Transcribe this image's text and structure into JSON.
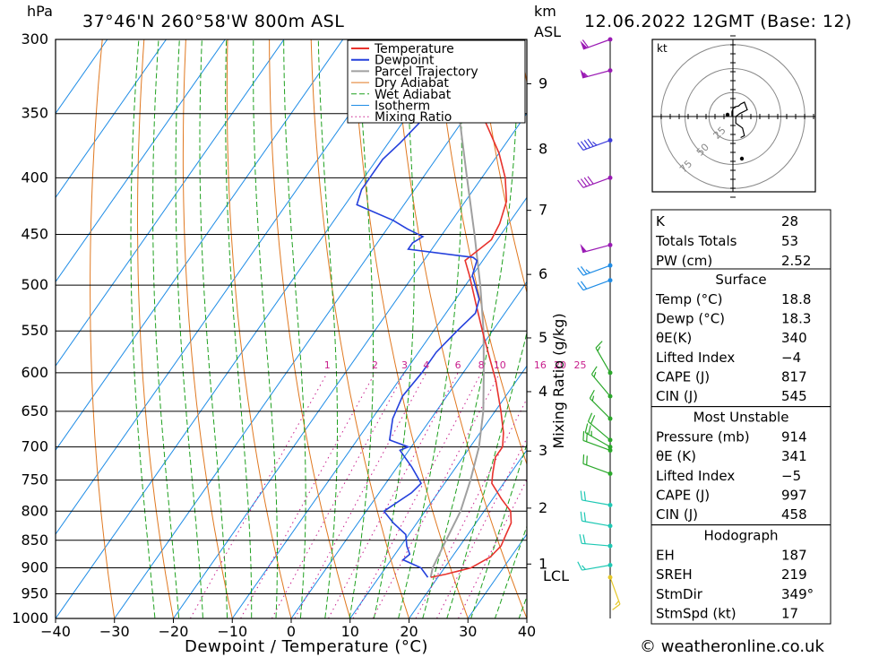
{
  "header": {
    "location": "37°46'N  260°58'W  800m  ASL",
    "datetime": "12.06.2022  12GMT  (Base: 12)",
    "hpa_label": "hPa",
    "km_label": "km",
    "asl_label": "ASL",
    "lcl_label": "LCL",
    "credit": "© weatheronline.co.uk",
    "kt_label": "kt"
  },
  "chart_data": {
    "type": "line",
    "title": "37°46'N  260°58'W  800m  ASL",
    "xlabel": "Dewpoint / Temperature (°C)",
    "ylabel": "hPa",
    "mixing_axis_label": "Mixing Ratio (g/kg)",
    "xlim": [
      -40,
      40
    ],
    "ylim": [
      1000,
      300
    ],
    "x_ticks": [
      "−40",
      "−30",
      "−20",
      "−10",
      "0",
      "10",
      "20",
      "30",
      "40"
    ],
    "pressure_levels": [
      300,
      350,
      400,
      450,
      500,
      550,
      600,
      650,
      700,
      750,
      800,
      850,
      900,
      950,
      1000
    ],
    "km_ticks": [
      {
        "label": "9",
        "p": 329
      },
      {
        "label": "8",
        "p": 377
      },
      {
        "label": "7",
        "p": 428
      },
      {
        "label": "6",
        "p": 489
      },
      {
        "label": "5",
        "p": 558
      },
      {
        "label": "4",
        "p": 624
      },
      {
        "label": "3",
        "p": 706
      },
      {
        "label": "2",
        "p": 795
      },
      {
        "label": "1",
        "p": 893
      }
    ],
    "mixing_ratio_labels": [
      "1",
      "2",
      "3",
      "4",
      "6",
      "8",
      "10",
      "16",
      "20",
      "25"
    ],
    "mixing_ratio_values": [
      1,
      2,
      3,
      4,
      6,
      8,
      10,
      16,
      20,
      25
    ],
    "legend": [
      "Temperature",
      "Dewpoint",
      "Parcel Trajectory",
      "Dry Adiabat",
      "Wet Adiabat",
      "Isotherm",
      "Mixing Ratio"
    ],
    "colors": {
      "temperature": "#e8322d",
      "dewpoint": "#2440dc",
      "parcel": "#a0a0a0",
      "dry_adiabat": "#e07820",
      "wet_adiabat": "#1ea01e",
      "isotherm": "#1e8ce6",
      "mixing_ratio": "#c81e8c"
    },
    "series": [
      {
        "name": "Temperature",
        "points": [
          [
            18.8,
            918
          ],
          [
            21,
            912
          ],
          [
            24.5,
            900
          ],
          [
            26.5,
            880
          ],
          [
            27,
            860
          ],
          [
            26.5,
            840
          ],
          [
            26,
            820
          ],
          [
            24.5,
            800
          ],
          [
            21.5,
            780
          ],
          [
            18,
            755
          ],
          [
            17,
            740
          ],
          [
            15.5,
            715
          ],
          [
            15.5,
            700
          ],
          [
            14,
            680
          ],
          [
            11,
            650
          ],
          [
            6.5,
            610
          ],
          [
            2.5,
            580
          ],
          [
            -1,
            555
          ],
          [
            -6,
            520
          ],
          [
            -10.5,
            490
          ],
          [
            -13,
            475
          ],
          [
            -12.5,
            470
          ],
          [
            -11,
            455
          ],
          [
            -11.5,
            440
          ],
          [
            -13,
            420
          ],
          [
            -16,
            400
          ],
          [
            -20,
            380
          ],
          [
            -25,
            360
          ],
          [
            -29,
            345
          ],
          [
            -33,
            330
          ],
          [
            -38,
            315
          ],
          [
            -41,
            300
          ]
        ]
      },
      {
        "name": "Dewpoint",
        "points": [
          [
            18.3,
            918
          ],
          [
            16,
            900
          ],
          [
            12,
            885
          ],
          [
            12.5,
            875
          ],
          [
            11,
            860
          ],
          [
            9.5,
            840
          ],
          [
            6,
            820
          ],
          [
            3,
            800
          ],
          [
            5.5,
            770
          ],
          [
            6,
            755
          ],
          [
            2.5,
            730
          ],
          [
            -1.5,
            705
          ],
          [
            -0.5,
            700
          ],
          [
            -4.5,
            690
          ],
          [
            -6.5,
            660
          ],
          [
            -7.5,
            630
          ],
          [
            -7,
            600
          ],
          [
            -7,
            575
          ],
          [
            -6,
            550
          ],
          [
            -5,
            530
          ],
          [
            -6,
            515
          ],
          [
            -10,
            490
          ],
          [
            -11,
            475
          ],
          [
            -12,
            472
          ],
          [
            -24,
            464
          ],
          [
            -24,
            458
          ],
          [
            -23,
            452
          ],
          [
            -26.5,
            445
          ],
          [
            -30,
            437
          ],
          [
            -38,
            423
          ],
          [
            -39,
            410
          ],
          [
            -39,
            395
          ],
          [
            -39,
            385
          ],
          [
            -38,
            372
          ],
          [
            -37,
            355
          ],
          [
            -39,
            350
          ],
          [
            -34,
            348
          ],
          [
            -36,
            340
          ],
          [
            -38,
            330
          ],
          [
            -44,
            318
          ],
          [
            -40,
            300
          ]
        ]
      },
      {
        "name": "Parcel Trajectory",
        "points": [
          [
            18.8,
            918
          ],
          [
            18,
            900
          ],
          [
            17,
            850
          ],
          [
            16,
            800
          ],
          [
            14,
            750
          ],
          [
            11.5,
            700
          ],
          [
            8,
            650
          ],
          [
            3.5,
            600
          ],
          [
            -1.5,
            550
          ],
          [
            -7.5,
            500
          ],
          [
            -14.5,
            450
          ],
          [
            -22.5,
            400
          ],
          [
            -31.5,
            350
          ],
          [
            -41,
            300
          ]
        ]
      }
    ]
  },
  "hodograph": {
    "rings": [
      "25",
      "50",
      "75"
    ],
    "points": [
      [
        0,
        0
      ],
      [
        -1,
        1
      ],
      [
        -1,
        5
      ],
      [
        0,
        8
      ],
      [
        2,
        10
      ],
      [
        6,
        11
      ],
      [
        8,
        13
      ],
      [
        12,
        15
      ],
      [
        15,
        7
      ],
      [
        7,
        3
      ],
      [
        3,
        0
      ],
      [
        3,
        -7
      ],
      [
        10,
        -12
      ],
      [
        12,
        -20
      ],
      [
        8,
        -22
      ]
    ]
  },
  "stats": {
    "k": {
      "label": "K",
      "value": "28"
    },
    "tt": {
      "label": "Totals Totals",
      "value": "53"
    },
    "pw": {
      "label": "PW (cm)",
      "value": "2.52"
    },
    "surface": {
      "title": "Surface",
      "rows": [
        {
          "label": "Temp (°C)",
          "value": "18.8"
        },
        {
          "label": "Dewp (°C)",
          "value": "18.3"
        },
        {
          "label": "θE(K)",
          "value": "340"
        },
        {
          "label": "Lifted Index",
          "value": "−4"
        },
        {
          "label": "CAPE (J)",
          "value": "817"
        },
        {
          "label": "CIN (J)",
          "value": "545"
        }
      ]
    },
    "most_unstable": {
      "title": "Most Unstable",
      "rows": [
        {
          "label": "Pressure (mb)",
          "value": "914"
        },
        {
          "label": "θE (K)",
          "value": "341"
        },
        {
          "label": "Lifted Index",
          "value": "−5"
        },
        {
          "label": "CAPE (J)",
          "value": "997"
        },
        {
          "label": "CIN (J)",
          "value": "458"
        }
      ]
    },
    "hodo": {
      "title": "Hodograph",
      "rows": [
        {
          "label": "EH",
          "value": "187"
        },
        {
          "label": "SREH",
          "value": "219"
        },
        {
          "label": "StmDir",
          "value": "349°"
        },
        {
          "label": "StmSpd (kt)",
          "value": "17"
        }
      ]
    }
  },
  "wind_barbs": [
    {
      "p": 300,
      "color": "#9a1ab4",
      "dir": 250,
      "spd": 60
    },
    {
      "p": 320,
      "color": "#9a1ab4",
      "dir": 255,
      "spd": 55
    },
    {
      "p": 370,
      "color": "#3c3cdc",
      "dir": 250,
      "spd": 45
    },
    {
      "p": 400,
      "color": "#9a1ab4",
      "dir": 250,
      "spd": 40
    },
    {
      "p": 460,
      "color": "#9a1ab4",
      "dir": 255,
      "spd": 50
    },
    {
      "p": 480,
      "color": "#1e8ce6",
      "dir": 250,
      "spd": 25
    },
    {
      "p": 495,
      "color": "#1e8ce6",
      "dir": 250,
      "spd": 20
    },
    {
      "p": 600,
      "color": "#2aa82a",
      "dir": 330,
      "spd": 15
    },
    {
      "p": 630,
      "color": "#2aa82a",
      "dir": 320,
      "spd": 15
    },
    {
      "p": 660,
      "color": "#2aa82a",
      "dir": 315,
      "spd": 15
    },
    {
      "p": 690,
      "color": "#2aa82a",
      "dir": 310,
      "spd": 20
    },
    {
      "p": 700,
      "color": "#2aa82a",
      "dir": 300,
      "spd": 25
    },
    {
      "p": 705,
      "color": "#2aa82a",
      "dir": 290,
      "spd": 20
    },
    {
      "p": 740,
      "color": "#2aa82a",
      "dir": 290,
      "spd": 20
    },
    {
      "p": 790,
      "color": "#1ec8b4",
      "dir": 280,
      "spd": 20
    },
    {
      "p": 825,
      "color": "#1ec8b4",
      "dir": 280,
      "spd": 20
    },
    {
      "p": 860,
      "color": "#1ec8b4",
      "dir": 275,
      "spd": 20
    },
    {
      "p": 895,
      "color": "#1ec8b4",
      "dir": 260,
      "spd": 15
    },
    {
      "p": 918,
      "color": "#e6c828",
      "dir": 160,
      "spd": 15
    }
  ]
}
